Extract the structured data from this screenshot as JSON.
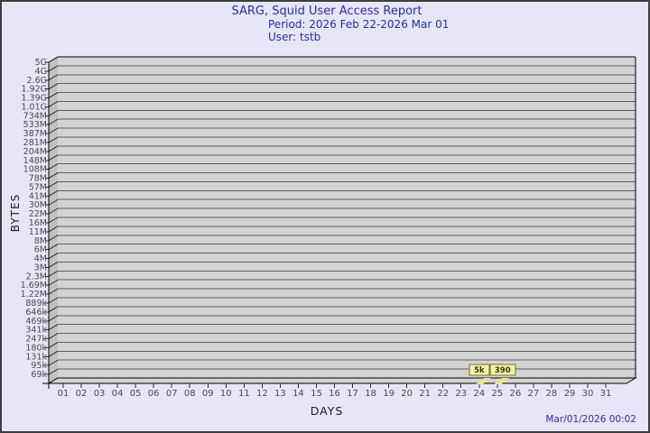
{
  "chart_data": {
    "type": "bar",
    "title": "SARG, Squid User Access Report",
    "subtitle": "Period: 2026 Feb 22-2026 Mar 01",
    "user_line": "User: tstb",
    "xlabel": "DAYS",
    "ylabel": "BYTES",
    "timestamp": "Mar/01/2026 00:02",
    "y_scale": "log-like descending ticks",
    "ylim": [
      "69k",
      "5G"
    ],
    "y_tick_labels": [
      "5G",
      "4G",
      "2.6G",
      "1.92G",
      "1.39G",
      "1.01G",
      "734M",
      "533M",
      "387M",
      "281M",
      "204M",
      "148M",
      "108M",
      "78M",
      "57M",
      "41M",
      "30M",
      "22M",
      "16M",
      "11M",
      "8M",
      "6M",
      "4M",
      "3M",
      "2.3M",
      "1.69M",
      "1.22M",
      "889k",
      "646k",
      "469k",
      "341k",
      "247k",
      "180k",
      "131k",
      "95k",
      "69k"
    ],
    "x_tick_labels": [
      "01",
      "02",
      "03",
      "04",
      "05",
      "06",
      "07",
      "08",
      "09",
      "10",
      "11",
      "12",
      "13",
      "14",
      "15",
      "16",
      "17",
      "18",
      "19",
      "20",
      "21",
      "22",
      "23",
      "24",
      "25",
      "26",
      "27",
      "28",
      "29",
      "30",
      "31"
    ],
    "bars": [
      {
        "day": "24",
        "value_label": "5k",
        "value_bytes": 5000
      },
      {
        "day": "25",
        "value_label": "390",
        "value_bytes": 390
      }
    ],
    "grid": true,
    "legend": "none",
    "colors": {
      "background": "#e6e6f6",
      "title_text": "#2a2ab0",
      "plot_bg": "#d3d3d3",
      "wall": "#c0c0c0",
      "grid_line": "#5e5e5e",
      "edge_line": "#000000",
      "tick_line": "#2e2e2e",
      "tick_text": "#4a4a4a",
      "bar_fill": "#f0e28e",
      "box_bg": "#f5f0ab",
      "box_border": "#73732d",
      "box_text": "#3f3a05"
    }
  }
}
